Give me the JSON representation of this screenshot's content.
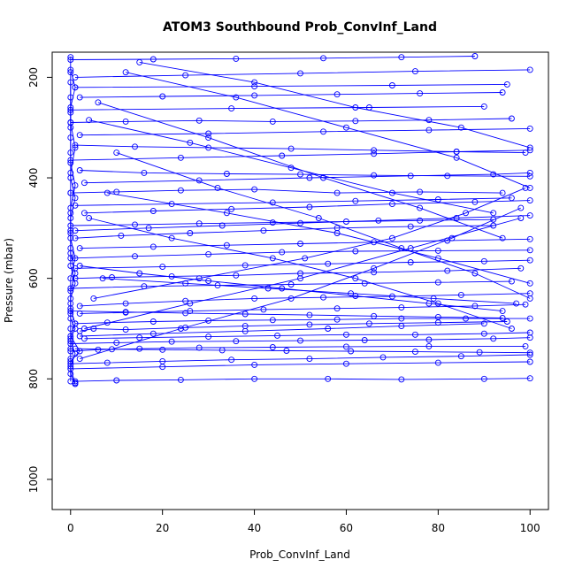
{
  "chart_data": {
    "type": "line",
    "title": "ATOM3 Southbound Prob_ConvInf_Land",
    "xlabel": "Prob_ConvInf_Land",
    "ylabel": "Pressure (mbar)",
    "xlim": [
      -4,
      104
    ],
    "ylim": [
      1060,
      150
    ],
    "y_reversed": true,
    "x_ticks": [
      0,
      20,
      40,
      60,
      80,
      100
    ],
    "y_ticks": [
      200,
      400,
      600,
      800,
      1000
    ],
    "grid": false,
    "legend": "none",
    "marker": "open-circle",
    "series": [
      {
        "x": [
          1,
          0,
          0,
          0,
          0,
          1,
          0,
          0,
          0,
          1,
          0,
          0,
          1,
          0,
          0,
          0,
          0,
          1,
          0,
          0
        ],
        "y": [
          808,
          780,
          760,
          740,
          720,
          700,
          680,
          650,
          600,
          560,
          520,
          480,
          440,
          400,
          350,
          300,
          260,
          220,
          185,
          160
        ]
      },
      {
        "x": [
          0,
          0,
          1,
          0,
          0,
          0,
          0,
          1,
          0,
          0,
          0,
          0,
          0,
          0,
          1,
          0,
          0,
          0
        ],
        "y": [
          805,
          775,
          750,
          725,
          700,
          670,
          640,
          610,
          575,
          540,
          505,
          470,
          430,
          390,
          340,
          290,
          240,
          190
        ]
      },
      {
        "x": [
          1,
          0,
          0,
          2,
          0,
          1,
          0,
          0,
          1,
          0,
          0,
          0,
          1,
          0,
          0,
          0,
          0
        ],
        "y": [
          810,
          790,
          765,
          745,
          715,
          690,
          660,
          625,
          590,
          550,
          510,
          460,
          415,
          370,
          320,
          270,
          210
        ]
      },
      {
        "x": [
          2,
          5,
          12,
          25,
          38,
          52,
          65,
          80,
          95
        ],
        "y": [
          705,
          700,
          702,
          698,
          695,
          692,
          690,
          688,
          686
        ]
      },
      {
        "x": [
          0,
          8,
          20,
          35,
          52,
          68,
          85,
          100
        ],
        "y": [
          770,
          768,
          765,
          762,
          760,
          757,
          755,
          752
        ]
      },
      {
        "x": [
          1,
          10,
          24,
          40,
          56,
          72,
          90,
          100
        ],
        "y": [
          805,
          803,
          802,
          800,
          800,
          801,
          800,
          799
        ]
      },
      {
        "x": [
          0,
          6,
          15,
          28,
          44,
          60,
          78,
          99
        ],
        "y": [
          745,
          742,
          740,
          738,
          737,
          736,
          735,
          735
        ]
      },
      {
        "x": [
          2,
          12,
          25,
          40,
          55,
          70,
          85,
          100
        ],
        "y": [
          655,
          650,
          645,
          640,
          638,
          636,
          633,
          630
        ]
      },
      {
        "x": [
          1,
          9,
          22,
          36,
          50,
          66,
          82,
          98
        ],
        "y": [
          600,
          598,
          596,
          594,
          590,
          588,
          585,
          580
        ]
      },
      {
        "x": [
          0,
          14,
          30,
          46,
          62,
          80,
          100
        ],
        "y": [
          560,
          556,
          552,
          548,
          546,
          545,
          544
        ]
      },
      {
        "x": [
          1,
          11,
          26,
          42,
          58,
          74,
          92
        ],
        "y": [
          520,
          515,
          510,
          505,
          500,
          497,
          495
        ]
      },
      {
        "x": [
          3,
          18,
          35,
          52,
          70,
          88,
          100
        ],
        "y": [
          470,
          466,
          462,
          458,
          452,
          448,
          445
        ]
      },
      {
        "x": [
          0,
          10,
          24,
          40,
          58,
          76,
          94
        ],
        "y": [
          430,
          428,
          425,
          423,
          430,
          428,
          430
        ]
      },
      {
        "x": [
          2,
          16,
          34,
          50,
          66,
          82,
          100
        ],
        "y": [
          385,
          390,
          392,
          393,
          395,
          396,
          397
        ]
      },
      {
        "x": [
          1,
          14,
          30,
          48,
          66,
          84,
          99
        ],
        "y": [
          335,
          338,
          340,
          342,
          345,
          348,
          350
        ]
      },
      {
        "x": [
          0,
          12,
          28,
          44,
          62,
          78,
          96
        ],
        "y": [
          290,
          288,
          286,
          288,
          287,
          285,
          282
        ]
      },
      {
        "x": [
          2,
          20,
          40,
          58,
          76,
          94
        ],
        "y": [
          240,
          238,
          236,
          234,
          232,
          230
        ]
      },
      {
        "x": [
          1,
          25,
          50,
          75,
          100
        ],
        "y": [
          200,
          196,
          192,
          188,
          185
        ]
      },
      {
        "x": [
          0,
          18,
          36,
          55,
          72,
          88
        ],
        "y": [
          165,
          164,
          163,
          162,
          160,
          158
        ]
      },
      {
        "x": [
          3,
          15,
          30,
          45,
          60,
          75,
          90,
          100
        ],
        "y": [
          720,
          718,
          716,
          714,
          712,
          712,
          710,
          708
        ]
      },
      {
        "x": [
          1,
          8,
          18,
          30,
          44,
          58,
          72,
          86,
          100
        ],
        "y": [
          690,
          688,
          686,
          684,
          683,
          682,
          680,
          680,
          680
        ]
      },
      {
        "x": [
          0,
          10,
          22,
          36,
          50,
          64,
          78,
          92,
          100
        ],
        "y": [
          730,
          728,
          726,
          725,
          724,
          723,
          722,
          720,
          718
        ]
      },
      {
        "x": [
          2,
          12,
          26,
          42,
          58,
          72,
          88,
          99
        ],
        "y": [
          670,
          668,
          665,
          662,
          660,
          658,
          655,
          652
        ]
      },
      {
        "x": [
          0,
          16,
          32,
          48,
          64,
          80,
          96
        ],
        "y": [
          620,
          616,
          614,
          612,
          610,
          608,
          606
        ]
      },
      {
        "x": [
          1,
          20,
          38,
          56,
          74,
          90,
          100
        ],
        "y": [
          580,
          577,
          574,
          571,
          568,
          566,
          564
        ]
      },
      {
        "x": [
          2,
          18,
          34,
          50,
          66,
          82,
          100
        ],
        "y": [
          540,
          537,
          534,
          531,
          528,
          525,
          522
        ]
      },
      {
        "x": [
          0,
          14,
          28,
          44,
          60,
          76,
          92
        ],
        "y": [
          495,
          493,
          491,
          489,
          487,
          485,
          483
        ]
      },
      {
        "x": [
          1,
          22,
          44,
          62,
          80,
          96
        ],
        "y": [
          455,
          452,
          449,
          446,
          443,
          440
        ]
      },
      {
        "x": [
          3,
          28,
          52,
          74,
          92,
          100
        ],
        "y": [
          410,
          405,
          400,
          396,
          393,
          390
        ]
      },
      {
        "x": [
          0,
          24,
          46,
          66,
          84,
          100
        ],
        "y": [
          365,
          360,
          356,
          352,
          348,
          345
        ]
      },
      {
        "x": [
          2,
          30,
          55,
          78,
          100
        ],
        "y": [
          315,
          312,
          308,
          305,
          302
        ]
      },
      {
        "x": [
          0,
          35,
          65,
          90
        ],
        "y": [
          265,
          262,
          260,
          258
        ]
      },
      {
        "x": [
          1,
          40,
          70,
          95
        ],
        "y": [
          220,
          218,
          216,
          214
        ]
      },
      {
        "x": [
          5,
          28,
          51,
          70,
          86,
          99
        ],
        "y": [
          640,
          600,
          560,
          520,
          470,
          420
        ]
      },
      {
        "x": [
          2,
          24,
          48,
          66,
          83,
          98
        ],
        "y": [
          760,
          700,
          640,
          580,
          520,
          460
        ]
      },
      {
        "x": [
          10,
          32,
          54,
          72,
          88,
          100
        ],
        "y": [
          350,
          420,
          480,
          540,
          590,
          640
        ]
      },
      {
        "x": [
          6,
          30,
          55,
          76,
          94
        ],
        "y": [
          250,
          320,
          400,
          460,
          520
        ]
      },
      {
        "x": [
          4,
          22,
          44,
          62,
          80,
          96
        ],
        "y": [
          480,
          520,
          560,
          600,
          650,
          700
        ]
      },
      {
        "x": [
          8,
          34,
          58,
          80,
          100
        ],
        "y": [
          430,
          470,
          510,
          560,
          610
        ]
      },
      {
        "x": [
          12,
          36,
          60,
          84,
          100
        ],
        "y": [
          190,
          240,
          300,
          360,
          420
        ]
      },
      {
        "x": [
          3,
          26,
          50,
          74,
          98
        ],
        "y": [
          700,
          650,
          600,
          540,
          480
        ]
      },
      {
        "x": [
          7,
          25,
          43,
          61,
          79,
          97
        ],
        "y": [
          600,
          610,
          620,
          630,
          640,
          650
        ]
      },
      {
        "x": [
          0,
          20,
          40,
          60,
          80,
          100
        ],
        "y": [
          780,
          776,
          772,
          770,
          768,
          766
        ]
      },
      {
        "x": [
          4,
          26,
          48,
          70,
          92
        ],
        "y": [
          285,
          330,
          380,
          430,
          470
        ]
      },
      {
        "x": [
          15,
          40,
          62,
          85,
          100
        ],
        "y": [
          170,
          210,
          260,
          300,
          340
        ]
      },
      {
        "x": [
          2,
          18,
          38,
          56,
          72,
          90
        ],
        "y": [
          715,
          710,
          705,
          700,
          695,
          690
        ]
      },
      {
        "x": [
          1,
          9,
          20,
          33,
          47,
          61,
          75,
          89,
          100
        ],
        "y": [
          740,
          741,
          742,
          743,
          744,
          745,
          746,
          747,
          748
        ]
      },
      {
        "x": [
          0,
          12,
          25,
          38,
          52,
          66,
          80,
          94
        ],
        "y": [
          665,
          667,
          669,
          671,
          673,
          675,
          677,
          679
        ]
      },
      {
        "x": [
          2,
          15,
          30,
          46,
          62,
          78,
          94
        ],
        "y": [
          575,
          590,
          605,
          620,
          635,
          650,
          665
        ]
      },
      {
        "x": [
          1,
          17,
          33,
          50,
          67,
          84,
          100
        ],
        "y": [
          505,
          500,
          495,
          490,
          485,
          480,
          475
        ]
      }
    ]
  }
}
